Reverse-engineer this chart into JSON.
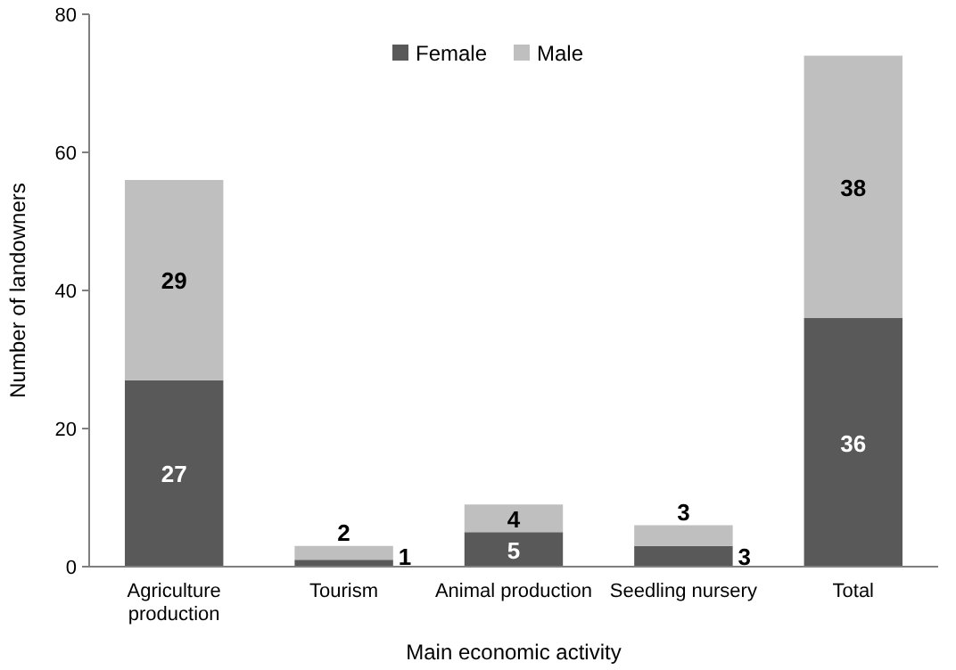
{
  "chart_data": {
    "type": "bar",
    "stacked": true,
    "xlabel": "Main economic activity",
    "ylabel": "Number of landowners",
    "categories": [
      "Agriculture production",
      "Tourism",
      "Animal production",
      "Seedling nursery",
      "Total"
    ],
    "series": [
      {
        "name": "Female",
        "color": "#595959",
        "values": [
          27,
          1,
          5,
          3,
          36
        ]
      },
      {
        "name": "Male",
        "color": "#bfbfbf",
        "values": [
          29,
          2,
          4,
          3,
          38
        ]
      }
    ],
    "ylim": [
      0,
      80
    ],
    "yticks": [
      0,
      20,
      40,
      60,
      80
    ],
    "grid": false,
    "legend": "top",
    "data_labels": true
  }
}
